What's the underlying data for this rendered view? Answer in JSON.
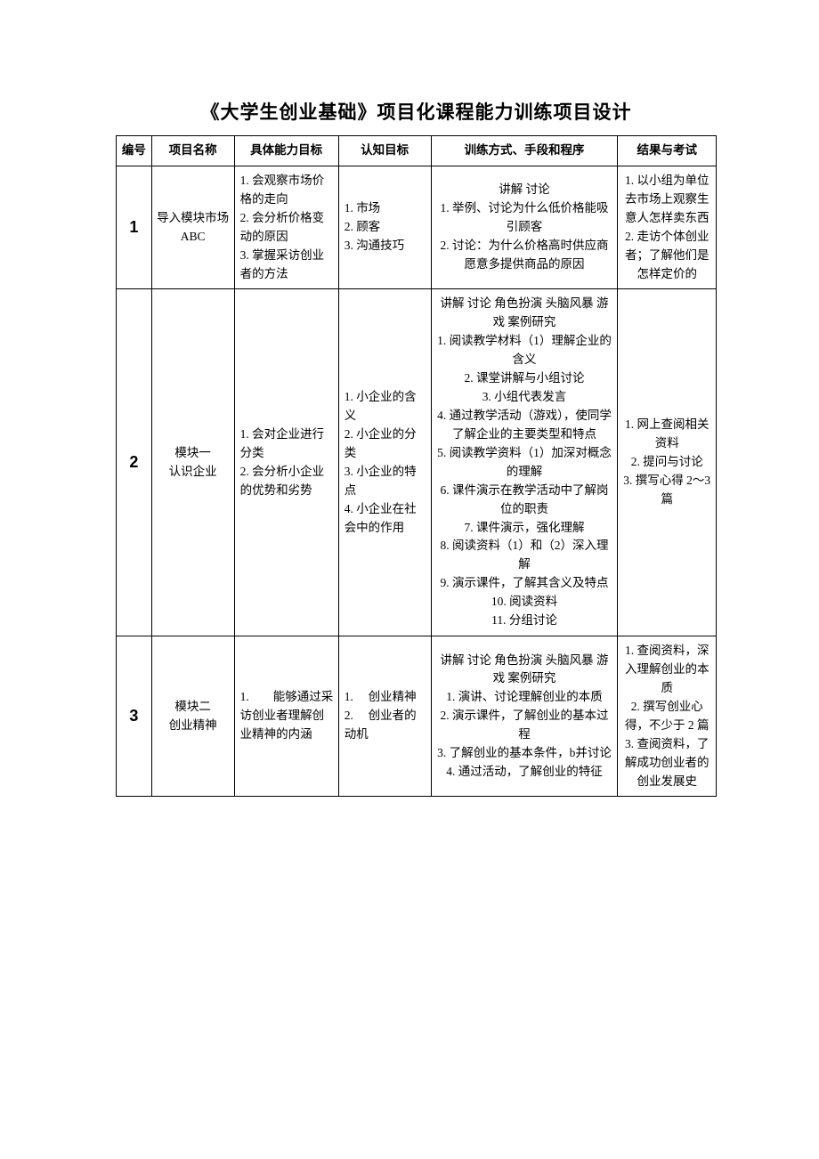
{
  "title": "《大学生创业基础》项目化课程能力训练项目设计",
  "headers": {
    "id": "编号",
    "name": "项目名称",
    "ability": "具体能力目标",
    "cognition": "认知目标",
    "method": "训练方式、手段和程序",
    "result": "结果与考试"
  },
  "rows": [
    {
      "id": "1",
      "name": "导入模块市场 ABC",
      "ability": "1. 会观察市场价格的走向\n2. 会分析价格变动的原因\n3. 掌握采访创业者的方法",
      "cognition": "1. 市场\n2. 顾客\n3. 沟通技巧",
      "method": "讲解 讨论\n1. 举例、讨论为什么低价格能吸引顾客\n2. 讨论：为什么价格高时供应商愿意多提供商品的原因",
      "result": "1. 以小组为单位去市场上观察生意人怎样卖东西\n2. 走访个体创业者；了解他们是怎样定价的"
    },
    {
      "id": "2",
      "name": "模块一\n认识企业",
      "ability": "1. 会对企业进行分类\n2. 会分析小企业的优势和劣势",
      "cognition": "1. 小企业的含义\n2. 小企业的分类\n3. 小企业的特点\n4. 小企业在社会中的作用",
      "method": "讲解 讨论 角色扮演 头脑风暴 游戏 案例研究\n1. 阅读教学材料（1）理解企业的含义\n2. 课堂讲解与小组讨论\n3. 小组代表发言\n4. 通过教学活动（游戏），使同学了解企业的主要类型和特点\n5. 阅读教学资料（1）加深对概念的理解\n6. 课件演示在教学活动中了解岗位的职责\n7. 课件演示，强化理解\n8. 阅读资料（1）和（2）深入理解\n9. 演示课件，了解其含义及特点\n10. 阅读资料\n11. 分组讨论",
      "result": "1. 网上查阅相关资料\n2. 提问与讨论\n3. 撰写心得 2～3 篇"
    },
    {
      "id": "3",
      "name": "模块二\n创业精神",
      "ability": "1.　　能够通过采访创业者理解创业精神的内涵",
      "cognition": "1.　 创业精神\n2.　 创业者的动机",
      "method": "讲解 讨论 角色扮演 头脑风暴 游戏 案例研究\n1. 演讲、讨论理解创业的本质\n2. 演示课件，了解创业的基本过程\n3. 了解创业的基本条件，b并讨论\n4. 通过活动，了解创业的特征",
      "result": "1. 查阅资料，深入理解创业的本质\n2. 撰写创业心得，不少于 2 篇\n3. 查阅资料，了解成功创业者的创业发展史"
    }
  ]
}
